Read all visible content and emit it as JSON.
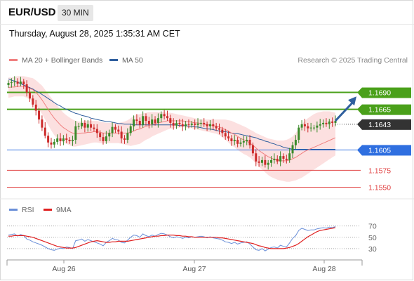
{
  "header": {
    "symbol": "EUR/USD",
    "timeframe": "30 MIN",
    "timestamp": "Thursday, August 28, 2025 1:35:31 AM CET"
  },
  "legend": {
    "items": [
      {
        "label": "MA 20 + Bollinger Bands",
        "color": "#f08080"
      },
      {
        "label": "MA 50",
        "color": "#2f5f9e"
      }
    ],
    "credit": "Research © 2025 Trading Central"
  },
  "rsi_legend": {
    "items": [
      {
        "label": "RSI",
        "color": "#6a8fd8"
      },
      {
        "label": "9MA",
        "color": "#e02020"
      }
    ]
  },
  "colors": {
    "up": "#3a8a2a",
    "down": "#cc2b2b",
    "resistance": "#4aa01a",
    "pivot": "#2f6fe0",
    "support": "#e04040",
    "current": "#333333",
    "arrow": "#2f5f9e",
    "band_fill": "#fbd5d5"
  },
  "chart_data": [
    {
      "type": "candlestick",
      "title": "EUR/USD",
      "ylim": [
        1.1538,
        1.1702
      ],
      "x_ticks": [
        "Aug 26",
        "Aug 27",
        "Aug 28"
      ],
      "levels": [
        {
          "value": 1.169,
          "label": "1.1690",
          "kind": "resistance"
        },
        {
          "value": 1.1665,
          "label": "1.1665",
          "kind": "resistance"
        },
        {
          "value": 1.1643,
          "label": "1.1643",
          "kind": "current"
        },
        {
          "value": 1.1605,
          "label": "1.1605",
          "kind": "pivot"
        },
        {
          "value": 1.1575,
          "label": "1.1575",
          "kind": "support"
        },
        {
          "value": 1.155,
          "label": "1.1550",
          "kind": "support"
        }
      ],
      "closes": [
        1.1704,
        1.1705,
        1.1706,
        1.1703,
        1.1706,
        1.1702,
        1.169,
        1.1681,
        1.1672,
        1.1663,
        1.165,
        1.1638,
        1.1626,
        1.1616,
        1.1613,
        1.1617,
        1.1622,
        1.1618,
        1.1622,
        1.162,
        1.1618,
        1.162,
        1.164,
        1.164,
        1.1645,
        1.1638,
        1.1643,
        1.1638,
        1.1636,
        1.163,
        1.1624,
        1.1618,
        1.1625,
        1.163,
        1.1639,
        1.1635,
        1.1632,
        1.1622,
        1.162,
        1.163,
        1.164,
        1.165,
        1.1648,
        1.1642,
        1.1655,
        1.1648,
        1.1643,
        1.165,
        1.1645,
        1.1652,
        1.1658,
        1.1655,
        1.1652,
        1.1645,
        1.1641,
        1.1645,
        1.1643,
        1.164,
        1.1643,
        1.1642,
        1.1644,
        1.1642,
        1.1644,
        1.1645,
        1.1643,
        1.164,
        1.1643,
        1.164,
        1.1637,
        1.1635,
        1.163,
        1.1625,
        1.1622,
        1.1618,
        1.162,
        1.1614,
        1.1616,
        1.1618,
        1.162,
        1.1612,
        1.16,
        1.1588,
        1.1586,
        1.159,
        1.1583,
        1.1586,
        1.159,
        1.1592,
        1.1588,
        1.1596,
        1.1592,
        1.159,
        1.16,
        1.1612,
        1.162,
        1.1638,
        1.1643,
        1.164,
        1.1637,
        1.1638,
        1.1638,
        1.1641,
        1.1643,
        1.1645,
        1.1643,
        1.1647,
        1.1645,
        1.1648
      ],
      "ma20": [
        1.1697,
        1.1698,
        1.1698,
        1.1699,
        1.1699,
        1.1699,
        1.1698,
        1.1696,
        1.1694,
        1.169,
        1.1685,
        1.1679,
        1.1672,
        1.1665,
        1.1658,
        1.1652,
        1.1647,
        1.1642,
        1.1638,
        1.1635,
        1.1632,
        1.163,
        1.1629,
        1.1629,
        1.163,
        1.163,
        1.1631,
        1.1631,
        1.1632,
        1.1632,
        1.1631,
        1.163,
        1.163,
        1.163,
        1.163,
        1.163,
        1.163,
        1.163,
        1.163,
        1.163,
        1.1631,
        1.1633,
        1.1635,
        1.1636,
        1.1638,
        1.164,
        1.1641,
        1.1643,
        1.1644,
        1.1645,
        1.1646,
        1.1647,
        1.1648,
        1.1648,
        1.1648,
        1.1648,
        1.1648,
        1.1648,
        1.1647,
        1.1647,
        1.1646,
        1.1645,
        1.1645,
        1.1644,
        1.1643,
        1.1642,
        1.1642,
        1.1641,
        1.164,
        1.1639,
        1.1637,
        1.1635,
        1.1633,
        1.163,
        1.1628,
        1.1625,
        1.1622,
        1.162,
        1.1618,
        1.1615,
        1.1612,
        1.1608,
        1.1604,
        1.1601,
        1.1598,
        1.1595,
        1.1593,
        1.1591,
        1.159,
        1.1589,
        1.1589,
        1.1589,
        1.159,
        1.1592,
        1.1594,
        1.1597,
        1.16,
        1.1603,
        1.1605,
        1.1607,
        1.1609,
        1.1611,
        1.1613,
        1.1615,
        1.1617,
        1.1619,
        1.1621,
        1.1623
      ],
      "ma50": [
        1.171,
        1.1708,
        1.1707,
        1.1705,
        1.1703,
        1.1701,
        1.1699,
        1.1697,
        1.1695,
        1.1692,
        1.169,
        1.1687,
        1.1684,
        1.1681,
        1.1678,
        1.1675,
        1.1672,
        1.167,
        1.1667,
        1.1665,
        1.1663,
        1.1661,
        1.1659,
        1.1658,
        1.1656,
        1.1655,
        1.1654,
        1.1652,
        1.1651,
        1.165,
        1.1649,
        1.1648,
        1.1647,
        1.1647,
        1.1646,
        1.1645,
        1.1644,
        1.1644,
        1.1643,
        1.1643,
        1.1643,
        1.1642,
        1.1642,
        1.1642,
        1.1642,
        1.1642,
        1.1642,
        1.1642,
        1.1642,
        1.1642,
        1.1642,
        1.1642,
        1.1642,
        1.1642,
        1.1642,
        1.1642,
        1.1641,
        1.1641,
        1.1641,
        1.164,
        1.164,
        1.1639,
        1.1639,
        1.1638,
        1.1637,
        1.1636,
        1.1636,
        1.1635,
        1.1634,
        1.1633,
        1.1632,
        1.1632,
        1.1631,
        1.163,
        1.1629,
        1.1629,
        1.1628,
        1.1627,
        1.1626,
        1.1625,
        1.1624,
        1.1623,
        1.1621,
        1.162,
        1.1618,
        1.1617,
        1.1615,
        1.1614,
        1.1612,
        1.1611,
        1.1609,
        1.1608,
        1.1607,
        1.1606,
        1.1606,
        1.1606,
        1.1606,
        1.1606,
        1.1606,
        1.1606,
        1.1606,
        1.1606,
        1.1606,
        1.1606,
        1.1606,
        1.1606,
        1.1606,
        1.1606
      ],
      "bb_upper": [
        1.1712,
        1.1712,
        1.1713,
        1.1714,
        1.1714,
        1.1714,
        1.1713,
        1.1712,
        1.1711,
        1.1708,
        1.1704,
        1.17,
        1.1694,
        1.1688,
        1.1682,
        1.1676,
        1.167,
        1.1665,
        1.166,
        1.1656,
        1.1653,
        1.165,
        1.1648,
        1.1647,
        1.1647,
        1.1648,
        1.1648,
        1.1648,
        1.1648,
        1.1648,
        1.1647,
        1.1646,
        1.1645,
        1.1645,
        1.1645,
        1.1645,
        1.1645,
        1.1646,
        1.1647,
        1.1649,
        1.1652,
        1.1655,
        1.1657,
        1.1658,
        1.1659,
        1.166,
        1.1661,
        1.1661,
        1.1661,
        1.1661,
        1.1661,
        1.1661,
        1.166,
        1.166,
        1.1659,
        1.1658,
        1.1657,
        1.1656,
        1.1655,
        1.1654,
        1.1653,
        1.1652,
        1.1651,
        1.165,
        1.165,
        1.165,
        1.165,
        1.165,
        1.165,
        1.165,
        1.165,
        1.165,
        1.1649,
        1.1648,
        1.1646,
        1.1644,
        1.1642,
        1.164,
        1.1638,
        1.1635,
        1.1633,
        1.163,
        1.1628,
        1.1626,
        1.1624,
        1.1622,
        1.1621,
        1.162,
        1.1619,
        1.1619,
        1.1619,
        1.162,
        1.1622,
        1.1625,
        1.163,
        1.1636,
        1.1642,
        1.1648,
        1.1652,
        1.1655,
        1.1658,
        1.166,
        1.1661,
        1.1662,
        1.1662,
        1.1662,
        1.1661,
        1.166
      ],
      "bb_lower": [
        1.1682,
        1.1683,
        1.1684,
        1.1684,
        1.1684,
        1.1684,
        1.1682,
        1.168,
        1.1676,
        1.1671,
        1.1665,
        1.1658,
        1.165,
        1.1642,
        1.1634,
        1.1627,
        1.1622,
        1.1618,
        1.1616,
        1.1614,
        1.1612,
        1.161,
        1.161,
        1.1611,
        1.1612,
        1.1613,
        1.1614,
        1.1615,
        1.1616,
        1.1616,
        1.1615,
        1.1615,
        1.1615,
        1.1615,
        1.1615,
        1.1615,
        1.1615,
        1.1614,
        1.1613,
        1.1612,
        1.1611,
        1.1612,
        1.1613,
        1.1614,
        1.1617,
        1.162,
        1.1622,
        1.1625,
        1.1627,
        1.1629,
        1.1631,
        1.1633,
        1.1635,
        1.1636,
        1.1637,
        1.1638,
        1.1638,
        1.1639,
        1.1638,
        1.1638,
        1.1637,
        1.1636,
        1.1635,
        1.1634,
        1.1633,
        1.1632,
        1.1631,
        1.163,
        1.1629,
        1.1627,
        1.1624,
        1.162,
        1.1616,
        1.1612,
        1.1609,
        1.1605,
        1.1602,
        1.1599,
        1.1597,
        1.1594,
        1.159,
        1.1585,
        1.158,
        1.1576,
        1.1572,
        1.1568,
        1.1565,
        1.1563,
        1.1561,
        1.156,
        1.1559,
        1.1558,
        1.1558,
        1.1559,
        1.156,
        1.1562,
        1.1564,
        1.1567,
        1.157,
        1.1573,
        1.1576,
        1.1579,
        1.1582,
        1.1585,
        1.1588,
        1.1591,
        1.1594,
        1.1597
      ]
    },
    {
      "type": "line",
      "title": "RSI",
      "ylim": [
        10,
        82
      ],
      "y_ticks": [
        70,
        50,
        30
      ],
      "series": [
        {
          "name": "RSI",
          "color": "#6a8fd8",
          "values": [
            54,
            55,
            56,
            52,
            55,
            53,
            47,
            45,
            42,
            40,
            38,
            36,
            33,
            30,
            28,
            27,
            29,
            31,
            30,
            33,
            32,
            30,
            44,
            45,
            47,
            43,
            46,
            44,
            42,
            40,
            38,
            35,
            41,
            44,
            48,
            46,
            45,
            41,
            40,
            45,
            50,
            54,
            53,
            50,
            56,
            53,
            51,
            54,
            52,
            55,
            57,
            56,
            54,
            51,
            49,
            51,
            50,
            48,
            50,
            49,
            51,
            50,
            51,
            52,
            51,
            49,
            51,
            49,
            48,
            47,
            45,
            42,
            41,
            39,
            41,
            38,
            40,
            41,
            42,
            38,
            33,
            28,
            27,
            30,
            26,
            29,
            32,
            33,
            31,
            36,
            34,
            33,
            40,
            48,
            53,
            62,
            66,
            64,
            62,
            63,
            63,
            65,
            66,
            67,
            66,
            68,
            67,
            69
          ]
        },
        {
          "name": "9MA",
          "color": "#e02020",
          "values": [
            52,
            52,
            53,
            53,
            53,
            53,
            52,
            51,
            50,
            48,
            46,
            44,
            42,
            40,
            38,
            36,
            34,
            33,
            32,
            31,
            31,
            31,
            32,
            34,
            36,
            38,
            40,
            42,
            43,
            44,
            43,
            42,
            41,
            41,
            42,
            42,
            43,
            43,
            43,
            43,
            44,
            45,
            46,
            47,
            48,
            49,
            50,
            51,
            52,
            52,
            53,
            53,
            54,
            54,
            54,
            53,
            53,
            52,
            52,
            51,
            51,
            50,
            50,
            50,
            50,
            50,
            50,
            50,
            50,
            49,
            49,
            48,
            47,
            46,
            45,
            44,
            43,
            42,
            41,
            40,
            39,
            37,
            35,
            34,
            32,
            31,
            30,
            30,
            30,
            30,
            30,
            31,
            32,
            34,
            36,
            39,
            43,
            47,
            51,
            54,
            57,
            60,
            62,
            63,
            64,
            65,
            66,
            67
          ]
        }
      ]
    }
  ]
}
